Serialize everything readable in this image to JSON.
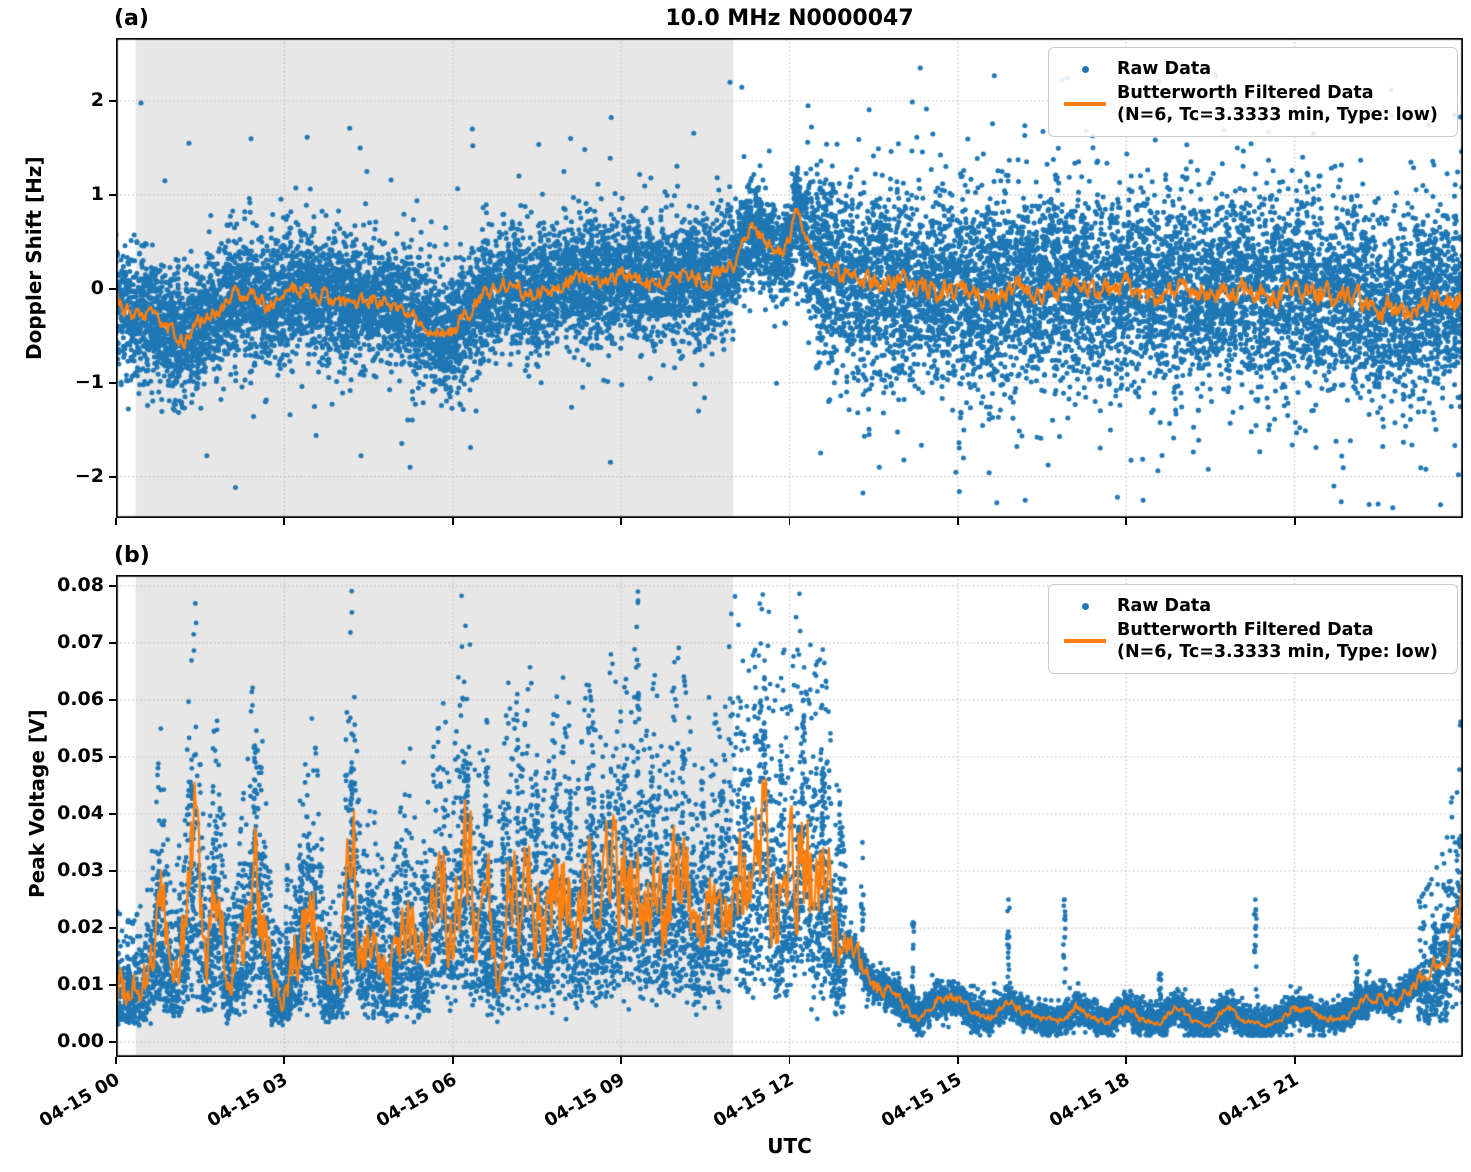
{
  "title": "10.0 MHz N0000047",
  "xlabel": "UTC",
  "colors": {
    "raw": "#1f77b4",
    "filtered": "#ff7f0e",
    "shade": "#e7e7e7",
    "grid": "#bdbdbd",
    "spine": "#000000",
    "background": "#ffffff"
  },
  "legend": {
    "raw_label": "Raw Data",
    "filtered_label": "Butterworth Filtered Data",
    "filtered_sublabel": "(N=6, Tc=3.3333 min, Type: low)"
  },
  "x_axis": {
    "unit": "hours since 2024-04-15 00:00 UTC",
    "range_hours": [
      0,
      24
    ],
    "tick_hours": [
      0,
      3,
      6,
      9,
      12,
      15,
      18,
      21
    ],
    "tick_labels": [
      "04-15 00",
      "04-15 03",
      "04-15 06",
      "04-15 09",
      "04-15 12",
      "04-15 15",
      "04-15 18",
      "04-15 21"
    ]
  },
  "shade_region": {
    "start_hour": 0.35,
    "end_hour": 11.0
  },
  "chart_data": [
    {
      "type": "scatter",
      "panel": "(a)",
      "ylabel": "Doppler Shift [Hz]",
      "ylim": [
        -2.44,
        2.67
      ],
      "yticks": [
        2,
        1,
        0,
        -1,
        -2
      ],
      "ytick_labels": [
        "2",
        "1",
        "0",
        "−1",
        "−2"
      ],
      "series": [
        {
          "name": "Raw Data",
          "style": "scatter"
        },
        {
          "name": "Butterworth Filtered Data (N=6, Tc=3.3333 min, Type: low)",
          "style": "line"
        }
      ],
      "filtered": {
        "x": [
          0,
          0.3,
          0.6,
          0.9,
          1.2,
          1.5,
          1.8,
          2.1,
          2.4,
          2.7,
          3.0,
          3.3,
          3.6,
          3.9,
          4.2,
          4.5,
          4.8,
          5.1,
          5.4,
          5.7,
          6.0,
          6.3,
          6.6,
          6.9,
          7.2,
          7.5,
          7.8,
          8.1,
          8.4,
          8.7,
          9.0,
          9.3,
          9.6,
          9.9,
          10.2,
          10.5,
          10.8,
          11.0,
          11.2,
          11.35,
          11.5,
          11.7,
          11.9,
          12.0,
          12.1,
          12.2,
          12.35,
          12.5,
          12.7,
          13.0,
          13.3,
          13.6,
          14.0,
          14.5,
          15.0,
          15.5,
          16.0,
          16.5,
          17.0,
          17.5,
          18.0,
          18.5,
          19.0,
          19.5,
          20.0,
          20.5,
          21.0,
          21.5,
          22.0,
          22.5,
          23.0,
          23.5,
          24.0
        ],
        "y": [
          -0.1,
          -0.3,
          -0.25,
          -0.42,
          -0.55,
          -0.35,
          -0.25,
          -0.1,
          -0.05,
          -0.2,
          -0.05,
          0.02,
          -0.08,
          -0.12,
          -0.2,
          -0.1,
          -0.15,
          -0.25,
          -0.3,
          -0.48,
          -0.45,
          -0.25,
          -0.05,
          0.02,
          0.0,
          -0.05,
          0.02,
          0.1,
          0.13,
          0.08,
          0.16,
          0.12,
          0.04,
          0.1,
          0.15,
          0.1,
          0.15,
          0.25,
          0.5,
          0.65,
          0.55,
          0.42,
          0.38,
          0.5,
          0.85,
          0.7,
          0.45,
          0.32,
          0.25,
          0.12,
          0.05,
          0.02,
          0.05,
          -0.05,
          0.02,
          -0.12,
          0.05,
          -0.02,
          0.06,
          -0.05,
          0.02,
          -0.08,
          0.0,
          -0.05,
          0.02,
          -0.05,
          -0.02,
          -0.1,
          -0.08,
          -0.2,
          -0.25,
          -0.15,
          -0.12
        ]
      },
      "raw_model": {
        "n_points": 16000,
        "seed": 42,
        "segments": [
          {
            "t0": 0.0,
            "t1": 11.0,
            "sigma": 0.32,
            "tail_frac": 0.05,
            "tail_sigma": 0.72
          },
          {
            "t0": 11.0,
            "t1": 12.3,
            "sigma": 0.25,
            "tail_frac": 0.04,
            "tail_sigma": 0.6
          },
          {
            "t0": 12.3,
            "t1": 24.0,
            "sigma": 0.48,
            "tail_frac": 0.1,
            "tail_sigma": 0.85
          }
        ],
        "outliers": [
          [
            10.94,
            2.2
          ],
          [
            14.33,
            2.35
          ],
          [
            19.95,
            1.9
          ],
          [
            23.85,
            1.85
          ],
          [
            16.2,
            -2.25
          ],
          [
            18.3,
            -2.25
          ],
          [
            21.7,
            -2.1
          ],
          [
            23.6,
            -2.3
          ],
          [
            13.6,
            -1.9
          ],
          [
            15.1,
            -1.8
          ],
          [
            1.3,
            1.55
          ],
          [
            4.35,
            1.5
          ],
          [
            8.1,
            1.6
          ]
        ]
      },
      "line_jitter": [
        {
          "t0": 0.0,
          "t1": 11.0,
          "amp": 0.07
        },
        {
          "t0": 11.0,
          "t1": 12.5,
          "amp": 0.06
        },
        {
          "t0": 12.5,
          "t1": 24.0,
          "amp": 0.1
        }
      ]
    },
    {
      "type": "scatter",
      "panel": "(b)",
      "ylabel": "Peak Voltage [V]",
      "ylim": [
        -0.0026,
        0.0819
      ],
      "yticks": [
        0.0,
        0.01,
        0.02,
        0.03,
        0.04,
        0.05,
        0.06,
        0.07,
        0.08
      ],
      "ytick_labels": [
        "0.00",
        "0.01",
        "0.02",
        "0.03",
        "0.04",
        "0.05",
        "0.06",
        "0.07",
        "0.08"
      ],
      "series": [
        {
          "name": "Raw Data",
          "style": "scatter"
        },
        {
          "name": "Butterworth Filtered Data (N=6, Tc=3.3333 min, Type: low)",
          "style": "line"
        }
      ],
      "filtered": {
        "x": [
          0,
          0.3,
          0.6,
          0.8,
          1.0,
          1.2,
          1.4,
          1.6,
          1.8,
          2.0,
          2.2,
          2.5,
          2.8,
          3.0,
          3.2,
          3.5,
          3.8,
          4.0,
          4.2,
          4.4,
          4.6,
          4.8,
          5.0,
          5.2,
          5.4,
          5.6,
          5.8,
          6.0,
          6.2,
          6.4,
          6.6,
          6.8,
          7.0,
          7.2,
          7.4,
          7.6,
          7.8,
          8.0,
          8.2,
          8.4,
          8.6,
          8.8,
          9.0,
          9.2,
          9.4,
          9.6,
          9.8,
          10.0,
          10.2,
          10.4,
          10.6,
          10.8,
          11.0,
          11.2,
          11.4,
          11.55,
          11.7,
          11.9,
          12.05,
          12.25,
          12.4,
          12.6,
          12.8,
          13.0,
          13.2,
          13.5,
          13.8,
          14.0,
          14.3,
          14.6,
          15.0,
          15.3,
          15.6,
          15.9,
          16.2,
          16.5,
          16.8,
          17.1,
          17.4,
          17.7,
          18.0,
          18.3,
          18.6,
          18.9,
          19.2,
          19.5,
          19.8,
          20.1,
          20.4,
          20.7,
          21.0,
          21.3,
          21.6,
          21.9,
          22.2,
          22.5,
          22.8,
          23.1,
          23.4,
          23.7,
          24.0
        ],
        "y": [
          0.01,
          0.009,
          0.012,
          0.024,
          0.01,
          0.018,
          0.035,
          0.012,
          0.028,
          0.01,
          0.015,
          0.031,
          0.009,
          0.008,
          0.016,
          0.025,
          0.01,
          0.012,
          0.035,
          0.014,
          0.02,
          0.011,
          0.015,
          0.025,
          0.012,
          0.02,
          0.028,
          0.018,
          0.042,
          0.02,
          0.025,
          0.015,
          0.028,
          0.02,
          0.03,
          0.018,
          0.025,
          0.03,
          0.018,
          0.028,
          0.022,
          0.03,
          0.025,
          0.032,
          0.022,
          0.028,
          0.02,
          0.032,
          0.025,
          0.018,
          0.028,
          0.022,
          0.035,
          0.028,
          0.03,
          0.042,
          0.025,
          0.03,
          0.028,
          0.041,
          0.028,
          0.03,
          0.02,
          0.018,
          0.015,
          0.01,
          0.009,
          0.007,
          0.004,
          0.0075,
          0.0075,
          0.005,
          0.0045,
          0.007,
          0.005,
          0.004,
          0.0035,
          0.006,
          0.004,
          0.0035,
          0.006,
          0.004,
          0.0035,
          0.006,
          0.0035,
          0.003,
          0.006,
          0.0035,
          0.003,
          0.0035,
          0.006,
          0.005,
          0.004,
          0.0045,
          0.007,
          0.008,
          0.007,
          0.01,
          0.012,
          0.015,
          0.026
        ]
      },
      "raw_model": {
        "n_points": 13000,
        "seed": 7,
        "active_until_hour": 13.0,
        "active_again_from_hour": 23.2,
        "mult_sigma": 0.5,
        "quiet_sigma": 0.0014,
        "floor": 0.0012,
        "spikes": [
          [
            0.75,
            0.033
          ],
          [
            1.35,
            0.048
          ],
          [
            1.75,
            0.031
          ],
          [
            2.1,
            0.026
          ],
          [
            2.47,
            0.052
          ],
          [
            3.05,
            0.031
          ],
          [
            3.3,
            0.031
          ],
          [
            3.55,
            0.028
          ],
          [
            4.2,
            0.049
          ],
          [
            4.5,
            0.03
          ],
          [
            5.0,
            0.027
          ],
          [
            5.5,
            0.03
          ],
          [
            5.85,
            0.034
          ],
          [
            6.25,
            0.049
          ],
          [
            6.6,
            0.048
          ],
          [
            6.9,
            0.04
          ],
          [
            7.15,
            0.061
          ],
          [
            7.5,
            0.044
          ],
          [
            7.8,
            0.05
          ],
          [
            8.1,
            0.044
          ],
          [
            8.5,
            0.056
          ],
          [
            8.8,
            0.043
          ],
          [
            9.05,
            0.052
          ],
          [
            9.3,
            0.079
          ],
          [
            9.55,
            0.05
          ],
          [
            9.8,
            0.044
          ],
          [
            10.1,
            0.051
          ],
          [
            10.45,
            0.048
          ],
          [
            10.8,
            0.044
          ],
          [
            11.2,
            0.046
          ],
          [
            11.55,
            0.056
          ],
          [
            11.85,
            0.052
          ],
          [
            12.25,
            0.06
          ],
          [
            12.6,
            0.048
          ],
          [
            12.9,
            0.042
          ],
          [
            13.3,
            0.035
          ],
          [
            14.2,
            0.021
          ],
          [
            15.9,
            0.025
          ],
          [
            16.9,
            0.025
          ],
          [
            18.6,
            0.012
          ],
          [
            20.3,
            0.025
          ],
          [
            22.1,
            0.015
          ],
          [
            23.5,
            0.02
          ]
        ]
      },
      "line_jitter": [
        {
          "t0": 0.0,
          "t1": 12.9,
          "amp_rel": 0.3
        },
        {
          "t0": 12.9,
          "t1": 24.0,
          "amp_rel": 0.12
        }
      ]
    }
  ]
}
